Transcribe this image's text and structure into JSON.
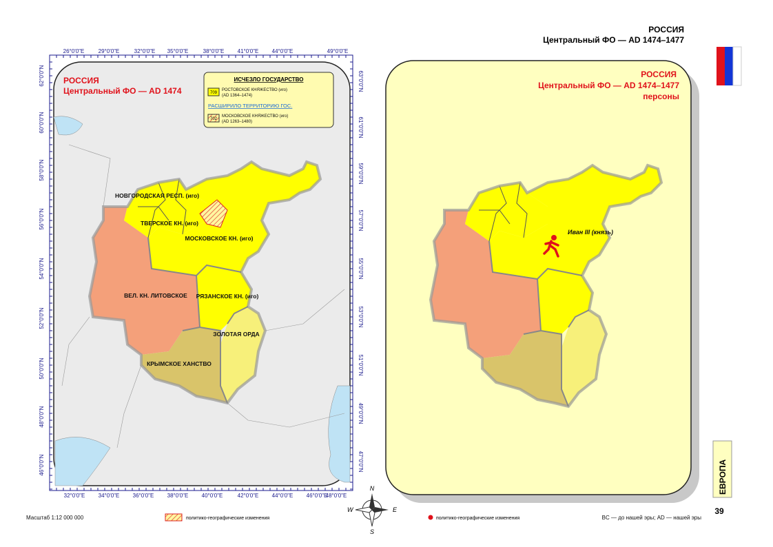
{
  "header": {
    "country": "РОССИЯ",
    "subtitle": "Центральный ФО — AD 1474–1477"
  },
  "left_map": {
    "title": "РОССИЯ",
    "subtitle": "Центральный ФО — AD 1474",
    "legend": {
      "heading": "ИСЧЕЗЛО ГОСУДАРСТВО",
      "code1": "709",
      "item1": "РОСТОВСКОЕ КНЯЖЕСТВО (иго)",
      "dates1": "(AD 1364–1474)",
      "heading2": "РАСШИРИЛО ТЕРРИТОРИЮ ГОС.",
      "code2": "702",
      "item2": "МОСКОВСКОЕ КНЯЖЕСТВО (иго)",
      "dates2": "(AD 1263–1480)"
    },
    "top_lon": [
      "26°0'0\"E",
      "29°0'0\"E",
      "32°0'0\"E",
      "35°0'0\"E",
      "38°0'0\"E",
      "41°0'0\"E",
      "44°0'0\"E",
      "49°0'0\"E"
    ],
    "bottom_lon": [
      "32°0'0\"E",
      "34°0'0\"E",
      "36°0'0\"E",
      "38°0'0\"E",
      "40°0'0\"E",
      "42°0'0\"E",
      "44°0'0\"E",
      "46°0'0\"E",
      "48°0'0\"E"
    ],
    "left_lat": [
      "62°0'0\"N",
      "60°0'0\"N",
      "58°0'0\"N",
      "56°0'0\"N",
      "54°0'0\"N",
      "52°0'0\"N",
      "50°0'0\"N",
      "48°0'0\"N",
      "46°0'0\"N"
    ],
    "right_lat": [
      "63°0'0\"N",
      "61°0'0\"N",
      "59°0'0\"N",
      "57°0'0\"N",
      "55°0'0\"N",
      "53°0'0\"N",
      "51°0'0\"N",
      "49°0'0\"N",
      "47°0'0\"N"
    ],
    "regions": [
      "НОВГОРОДСКАЯ РЕСП. (иго)",
      "ТВЕРСКОЕ КН. (иго)",
      "МОСКОВСКОЕ КН. (иго)",
      "ВЕЛ. КН. ЛИТОВСКОЕ",
      "РЯЗАНСКОЕ КН. (иго)",
      "ЗОЛОТАЯ ОРДА",
      "КРЫМСКОЕ ХАНСТВО"
    ]
  },
  "right_map": {
    "title": "РОССИЯ",
    "subtitle": "Центральный ФО — AD 1474–1477",
    "subtitle2": "персоны",
    "person": "Иван III (князь)"
  },
  "compass": {
    "n": "N",
    "e": "E",
    "s": "S",
    "w": "W"
  },
  "footer": {
    "scale": "Масштаб 1:12 000 000",
    "legend_left": "политико-географические изменения",
    "legend_right": "политико-географические изменения",
    "era_note": "BC — до нашей эры; AD — нашей эры",
    "section": "ЕВРОПА",
    "page": "39"
  }
}
